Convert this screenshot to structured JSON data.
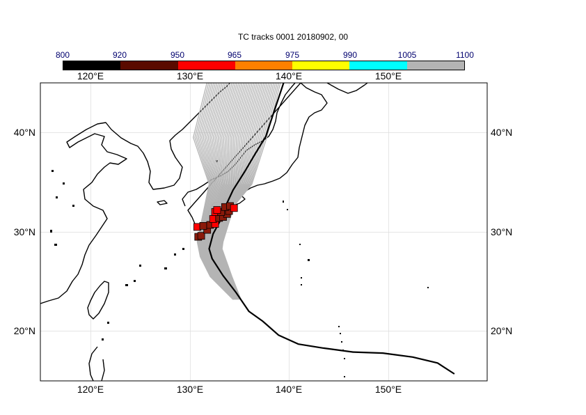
{
  "title": "TC tracks  0001 20180902, 00",
  "colorbar": {
    "labels": [
      "800",
      "920",
      "950",
      "965",
      "975",
      "990",
      "1005",
      "1100"
    ],
    "colors": [
      "#000000",
      "#5a0a00",
      "#ff0000",
      "#ff8000",
      "#ffff00",
      "#00ffff",
      "#b4b4b4"
    ]
  },
  "axes": {
    "lon_ticks": [
      "120°E",
      "130°E",
      "140°E",
      "150°E"
    ],
    "lat_ticks": [
      "20°N",
      "30°N",
      "40°N"
    ],
    "lon_range": [
      115.5,
      160.5
    ],
    "lat_range": [
      15,
      45
    ],
    "grid": true
  },
  "colors": {
    "ensemble_track": "#b4b4b4",
    "observed_track": "#000000",
    "marker_red": "#ff0000",
    "marker_darkred": "#8b1a0a"
  },
  "observed_track": [
    [
      157.2,
      15.7
    ],
    [
      155.5,
      16.8
    ],
    [
      153.0,
      17.4
    ],
    [
      150.0,
      17.8
    ],
    [
      147.0,
      17.9
    ],
    [
      144.0,
      18.3
    ],
    [
      141.5,
      18.7
    ],
    [
      139.5,
      19.6
    ],
    [
      137.9,
      21.0
    ],
    [
      136.5,
      22.0
    ],
    [
      135.2,
      23.9
    ],
    [
      133.9,
      25.6
    ],
    [
      132.8,
      27.3
    ],
    [
      132.5,
      28.3
    ],
    [
      132.9,
      29.8
    ],
    [
      133.6,
      31.1
    ],
    [
      134.2,
      32.7
    ],
    [
      134.9,
      34.2
    ],
    [
      136.1,
      36.1
    ],
    [
      137.1,
      37.8
    ],
    [
      138.2,
      39.6
    ],
    [
      138.9,
      41.7
    ],
    [
      139.5,
      43.5
    ],
    [
      140.0,
      45.0
    ]
  ],
  "markers": [
    [
      131.4,
      29.5,
      "darkred"
    ],
    [
      131.7,
      29.6,
      "darkred"
    ],
    [
      132.3,
      30.2,
      "darkred"
    ],
    [
      131.3,
      30.5,
      "red"
    ],
    [
      131.9,
      30.6,
      "darkred"
    ],
    [
      132.6,
      30.7,
      "darkred"
    ],
    [
      133.1,
      30.8,
      "red"
    ],
    [
      132.9,
      31.3,
      "red"
    ],
    [
      133.5,
      31.4,
      "darkred"
    ],
    [
      133.9,
      31.5,
      "darkred"
    ],
    [
      134.3,
      31.8,
      "darkred"
    ],
    [
      133.1,
      32.0,
      "red"
    ],
    [
      133.7,
      32.0,
      "darkred"
    ],
    [
      134.5,
      32.1,
      "darkred"
    ],
    [
      133.3,
      32.2,
      "red"
    ],
    [
      134.1,
      32.5,
      "darkred"
    ],
    [
      134.6,
      32.6,
      "darkred"
    ],
    [
      135.0,
      32.4,
      "red"
    ]
  ]
}
